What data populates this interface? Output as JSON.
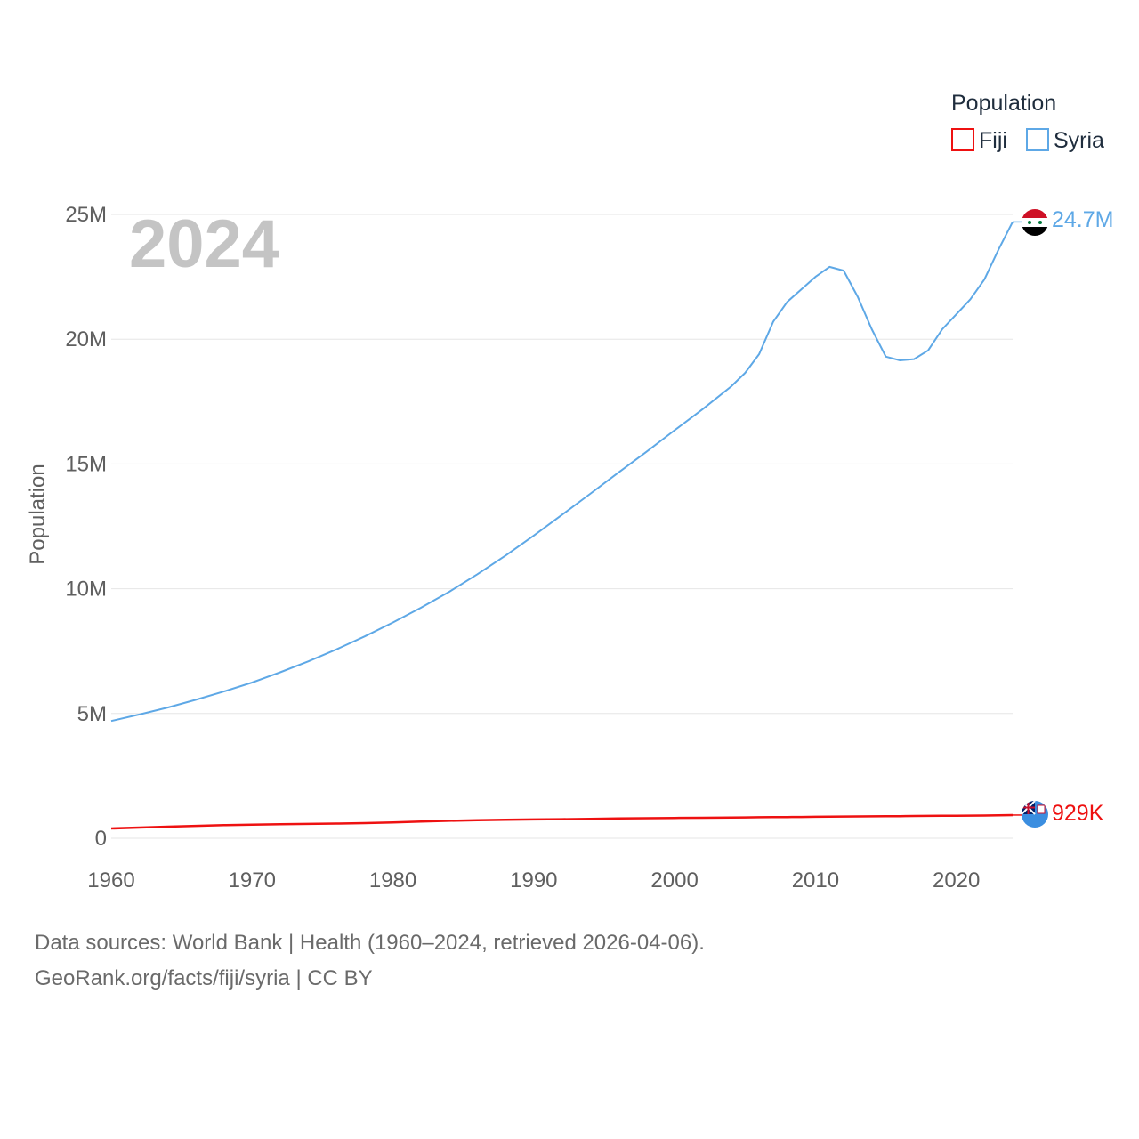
{
  "colors": {
    "fiji": "#ee1111",
    "syria": "#5ea8e6",
    "grid": "#e6e6e6",
    "tick": "#5f5f5f",
    "year": "#c4c4c4"
  },
  "chart_data": {
    "type": "line",
    "title": "",
    "xlabel": "",
    "ylabel": "Population",
    "current_year_label": "2024",
    "xlim": [
      1960,
      2024
    ],
    "ylim": [
      0,
      25000000
    ],
    "x_ticks": [
      1960,
      1970,
      1980,
      1990,
      2000,
      2010,
      2020
    ],
    "x_tick_labels": [
      "1960",
      "1970",
      "1980",
      "1990",
      "2000",
      "2010",
      "2020"
    ],
    "y_ticks": [
      0,
      5000000,
      10000000,
      15000000,
      20000000,
      25000000
    ],
    "y_tick_labels": [
      "0",
      "5M",
      "10M",
      "15M",
      "20M",
      "25M"
    ],
    "legend": {
      "title": "Population",
      "position": "top-right",
      "entries": [
        "Fiji",
        "Syria"
      ]
    },
    "x": [
      1960,
      1962,
      1964,
      1966,
      1968,
      1970,
      1972,
      1974,
      1976,
      1978,
      1980,
      1982,
      1984,
      1986,
      1988,
      1990,
      1992,
      1994,
      1996,
      1998,
      2000,
      2002,
      2004,
      2005,
      2006,
      2007,
      2008,
      2009,
      2010,
      2011,
      2012,
      2013,
      2014,
      2015,
      2016,
      2017,
      2018,
      2019,
      2020,
      2021,
      2022,
      2023,
      2024
    ],
    "series": [
      {
        "name": "Fiji",
        "end_label": "929K",
        "values": [
          393000,
          428000,
          462000,
          497000,
          523000,
          541000,
          559000,
          574000,
          588000,
          608000,
          635000,
          666000,
          698000,
          724000,
          740000,
          753000,
          762000,
          774000,
          790000,
          804000,
          812000,
          821000,
          830000,
          835000,
          840000,
          845000,
          849000,
          854000,
          860000,
          866000,
          869000,
          872000,
          876000,
          880000,
          885000,
          890000,
          895000,
          900000,
          903000,
          905000,
          910000,
          920000,
          929000
        ]
      },
      {
        "name": "Syria",
        "end_label": "24.7M",
        "values": [
          4700000,
          4960000,
          5240000,
          5550000,
          5880000,
          6240000,
          6650000,
          7090000,
          7570000,
          8090000,
          8650000,
          9240000,
          9880000,
          10580000,
          11330000,
          12130000,
          12960000,
          13800000,
          14650000,
          15490000,
          16350000,
          17200000,
          18100000,
          18650000,
          19400000,
          20700000,
          21500000,
          22000000,
          22500000,
          22900000,
          22750000,
          21700000,
          20400000,
          19300000,
          19150000,
          19200000,
          19550000,
          20400000,
          21000000,
          21600000,
          22400000,
          23600000,
          24700000
        ]
      }
    ]
  },
  "footer": {
    "line1": "Data sources: World Bank | Health (1960–2024, retrieved 2026-04-06).",
    "line2": "GeoRank.org/facts/fiji/syria | CC BY"
  }
}
